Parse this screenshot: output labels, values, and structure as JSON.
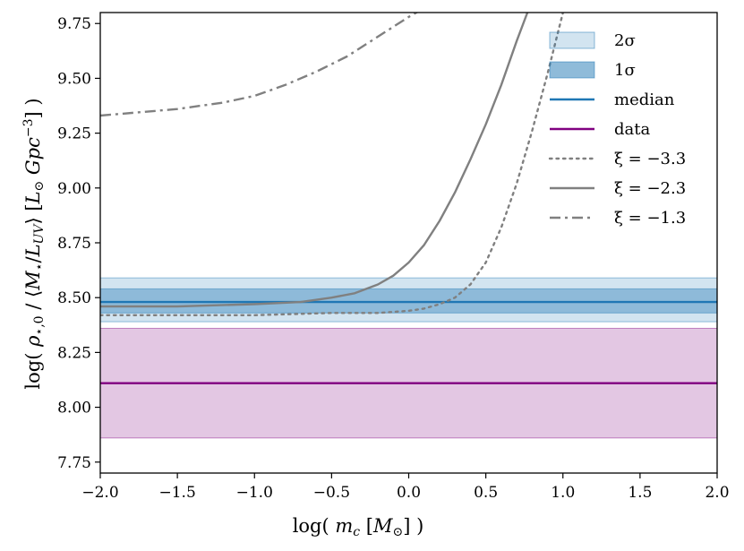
{
  "chart_data": {
    "type": "line",
    "title": "",
    "xlabel": "log( m_c [M_⊙] )",
    "ylabel": "log( ρ_⋆,0 / ⟨M_⋆/L_UV⟩ [L_⊙ Gpc^-3] )",
    "xlim": [
      -2.0,
      2.0
    ],
    "ylim": [
      7.7,
      9.8
    ],
    "x_ticks": [
      "−2.0",
      "−1.5",
      "−1.0",
      "−0.5",
      "0.0",
      "0.5",
      "1.0",
      "1.5",
      "2.0"
    ],
    "y_ticks": [
      "7.75",
      "8.00",
      "8.25",
      "8.50",
      "8.75",
      "9.00",
      "9.25",
      "9.50",
      "9.75"
    ],
    "grid": false,
    "legend_position": "top-right",
    "bands": [
      {
        "name": "2σ",
        "ymin": 8.39,
        "ymax": 8.59,
        "color": "#1f77b4"
      },
      {
        "name": "1σ",
        "ymin": 8.43,
        "ymax": 8.54,
        "color": "#1f77b4"
      },
      {
        "name": "data",
        "ymin": 7.86,
        "ymax": 8.36,
        "color": "#800080"
      }
    ],
    "hlines": [
      {
        "name": "median",
        "y": 8.48,
        "color": "#1f77b4"
      },
      {
        "name": "data",
        "y": 8.11,
        "color": "#800080"
      }
    ],
    "series": [
      {
        "name": "ξ = −3.3",
        "style": "dotted",
        "color": "#808080",
        "x": [
          -2.0,
          -1.0,
          -0.5,
          -0.2,
          0.0,
          0.1,
          0.2,
          0.3,
          0.4,
          0.5,
          0.6,
          0.7,
          0.8,
          0.9,
          1.0
        ],
        "y": [
          8.42,
          8.42,
          8.43,
          8.43,
          8.44,
          8.45,
          8.47,
          8.5,
          8.56,
          8.66,
          8.82,
          9.02,
          9.26,
          9.52,
          9.8
        ]
      },
      {
        "name": "ξ = −2.3",
        "style": "solid",
        "color": "#808080",
        "x": [
          -2.0,
          -1.5,
          -1.0,
          -0.7,
          -0.5,
          -0.35,
          -0.2,
          -0.1,
          0.0,
          0.1,
          0.2,
          0.3,
          0.4,
          0.5,
          0.6,
          0.7,
          0.77
        ],
        "y": [
          8.46,
          8.46,
          8.47,
          8.48,
          8.5,
          8.52,
          8.56,
          8.6,
          8.66,
          8.74,
          8.85,
          8.98,
          9.13,
          9.29,
          9.47,
          9.67,
          9.8
        ]
      },
      {
        "name": "ξ = −1.3",
        "style": "dashdot",
        "color": "#808080",
        "x": [
          -2.0,
          -1.5,
          -1.2,
          -1.0,
          -0.8,
          -0.6,
          -0.4,
          -0.2,
          0.0,
          0.1
        ],
        "y": [
          9.33,
          9.36,
          9.39,
          9.42,
          9.47,
          9.53,
          9.6,
          9.69,
          9.78,
          9.82
        ]
      }
    ],
    "legend": [
      {
        "label": "2σ",
        "kind": "band-light"
      },
      {
        "label": "1σ",
        "kind": "band-dark"
      },
      {
        "label": "median",
        "kind": "line-blue"
      },
      {
        "label": "data",
        "kind": "line-purple"
      },
      {
        "label": "ξ = −3.3",
        "kind": "dotted"
      },
      {
        "label": "ξ = −2.3",
        "kind": "solid"
      },
      {
        "label": "ξ = −1.3",
        "kind": "dashdot"
      }
    ]
  }
}
